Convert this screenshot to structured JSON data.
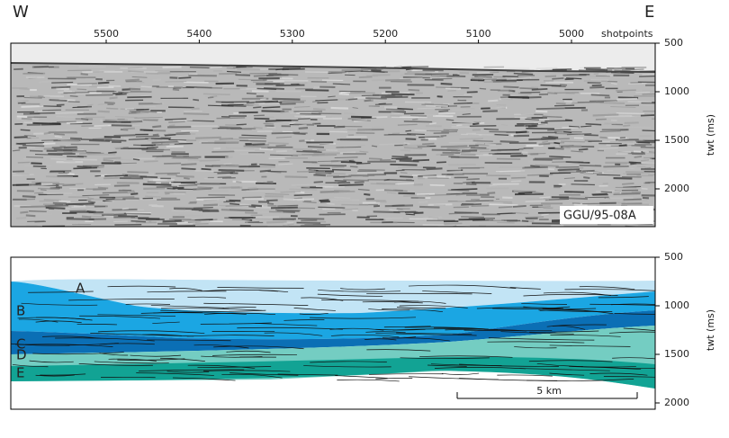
{
  "header": {
    "west": "W",
    "east": "E"
  },
  "seismic": {
    "shotpoints": {
      "label": "shotpoints",
      "ticks": [
        5500,
        5400,
        5300,
        5200,
        5100,
        5000
      ]
    },
    "twt_axis": {
      "label": "twt (ms)",
      "ticks": [
        500,
        1000,
        1500,
        2000
      ]
    },
    "line_id": "GGU/95-08A"
  },
  "interpretation": {
    "units": [
      "A",
      "B",
      "C",
      "D",
      "E"
    ],
    "twt_axis": {
      "label": "twt (ms)",
      "ticks": [
        500,
        1000,
        1500,
        2000
      ]
    },
    "scale_bar": "5 km"
  }
}
